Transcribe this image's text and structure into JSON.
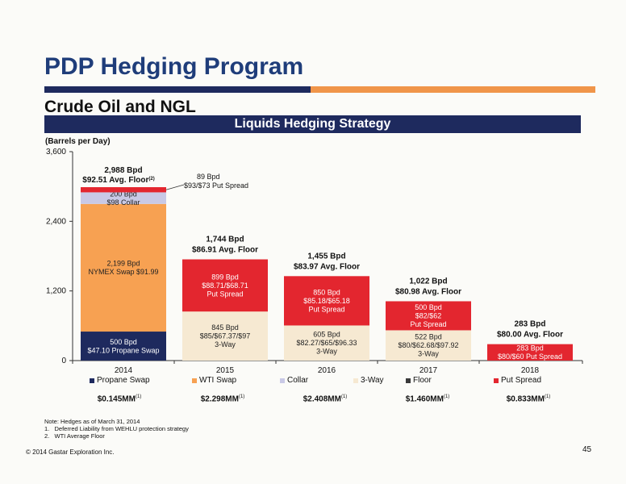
{
  "page": {
    "title": "PDP Hedging Program",
    "subtitle": "Crude Oil and NGL",
    "banner": "Liquids Hedging Strategy",
    "note_lines": [
      "Note: Hedges as of March 31, 2014",
      "1.   Deferred Liability from WEHLU protection strategy",
      "2.   WTI Average Floor"
    ],
    "copyright": "© 2014 Gastar Exploration Inc.",
    "page_number": "45",
    "colors": {
      "navy": "#1e2a5e",
      "orange": "#f0954a",
      "title_blue": "#1f3d7a"
    }
  },
  "chart_data": {
    "type": "bar",
    "stacked": true,
    "ylabel": "(Barrels per Day)",
    "ylim": [
      0,
      3600
    ],
    "yticks": [
      "0",
      "1,200",
      "2,400",
      "3,600"
    ],
    "categories": [
      "2014",
      "2015",
      "2016",
      "2017",
      "2018"
    ],
    "series": [
      {
        "name": "Propane Swap",
        "color": "#1e2a5e",
        "values": [
          500,
          0,
          0,
          0,
          0
        ]
      },
      {
        "name": "WTI Swap",
        "color": "#f7a152",
        "values": [
          2199,
          0,
          0,
          0,
          0
        ]
      },
      {
        "name": "Collar",
        "color": "#c9c9e6",
        "values": [
          200,
          0,
          0,
          0,
          0
        ]
      },
      {
        "name": "3-Way",
        "color": "#f6e9d2",
        "values": [
          0,
          845,
          605,
          522,
          0
        ]
      },
      {
        "name": "Floor",
        "color": "#3a3a3a",
        "values": [
          0,
          0,
          0,
          0,
          0
        ]
      },
      {
        "name": "Put Spread",
        "color": "#e3262f",
        "values": [
          89,
          899,
          850,
          500,
          283
        ]
      }
    ],
    "segment_labels": [
      [
        "500 Bpd\n$47.10 Propane Swap",
        "2,199 Bpd\nNYMEX Swap $91.99",
        "200 Bpd\n$98 Collar",
        "",
        "",
        ""
      ],
      [
        "",
        "",
        "",
        "845 Bpd\n$85/$67.37/$97\n3-Way",
        "",
        "899 Bpd\n$88.71/$68.71\nPut Spread"
      ],
      [
        "",
        "",
        "",
        "605 Bpd\n$82.27/$65/$96.33\n3-Way",
        "",
        "850 Bpd\n$85.18/$65.18\nPut Spread"
      ],
      [
        "",
        "",
        "",
        "522 Bpd\n$80/$62.68/$97.92\n3-Way",
        "",
        "500 Bpd\n$82/$62\nPut Spread"
      ],
      [
        "",
        "",
        "",
        "",
        "",
        "283 Bpd\n$80/$60 Put Spread"
      ]
    ],
    "total_labels": [
      {
        "bpd": "2,988 Bpd",
        "floor": "$92.51 Avg. Floor"
      },
      {
        "bpd": "1,744 Bpd",
        "floor": "$86.91 Avg. Floor"
      },
      {
        "bpd": "1,455 Bpd",
        "floor": "$83.97 Avg. Floor"
      },
      {
        "bpd": "1,022 Bpd",
        "floor": "$80.98 Avg. Floor"
      },
      {
        "bpd": "283 Bpd",
        "floor": "$80.00 Avg. Floor"
      }
    ],
    "total_note_2014": "(2)",
    "callout_2014": {
      "line1": "89 Bpd",
      "line2": "$93/$73 Put Spread"
    },
    "costs": [
      {
        "value": "$0.145MM",
        "note": "(1)"
      },
      {
        "value": "$2.298MM",
        "note": "(1)"
      },
      {
        "value": "$2.408MM",
        "note": "(1)"
      },
      {
        "value": "$1.460MM",
        "note": "(1)"
      },
      {
        "value": "$0.833MM",
        "note": "(1)"
      }
    ]
  }
}
